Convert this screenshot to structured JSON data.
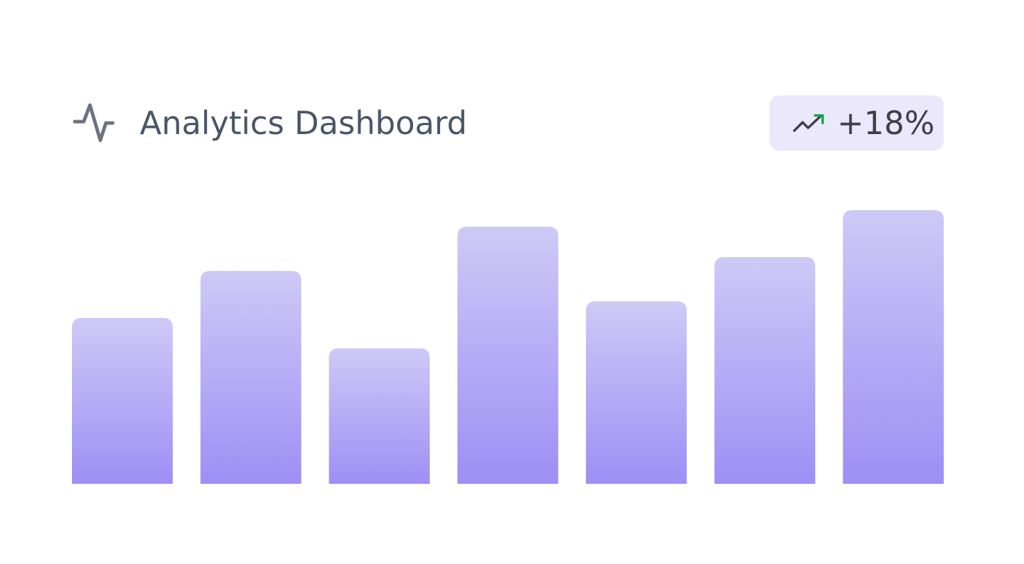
{
  "header": {
    "title": "Analytics Dashboard",
    "badge": "+18%"
  },
  "chart_data": {
    "type": "bar",
    "values": [
      240,
      308,
      196,
      372,
      264,
      328,
      396
    ],
    "ylim": [
      0,
      400
    ],
    "colors": [
      "#cfc9f6",
      "#9d8ff5"
    ]
  }
}
